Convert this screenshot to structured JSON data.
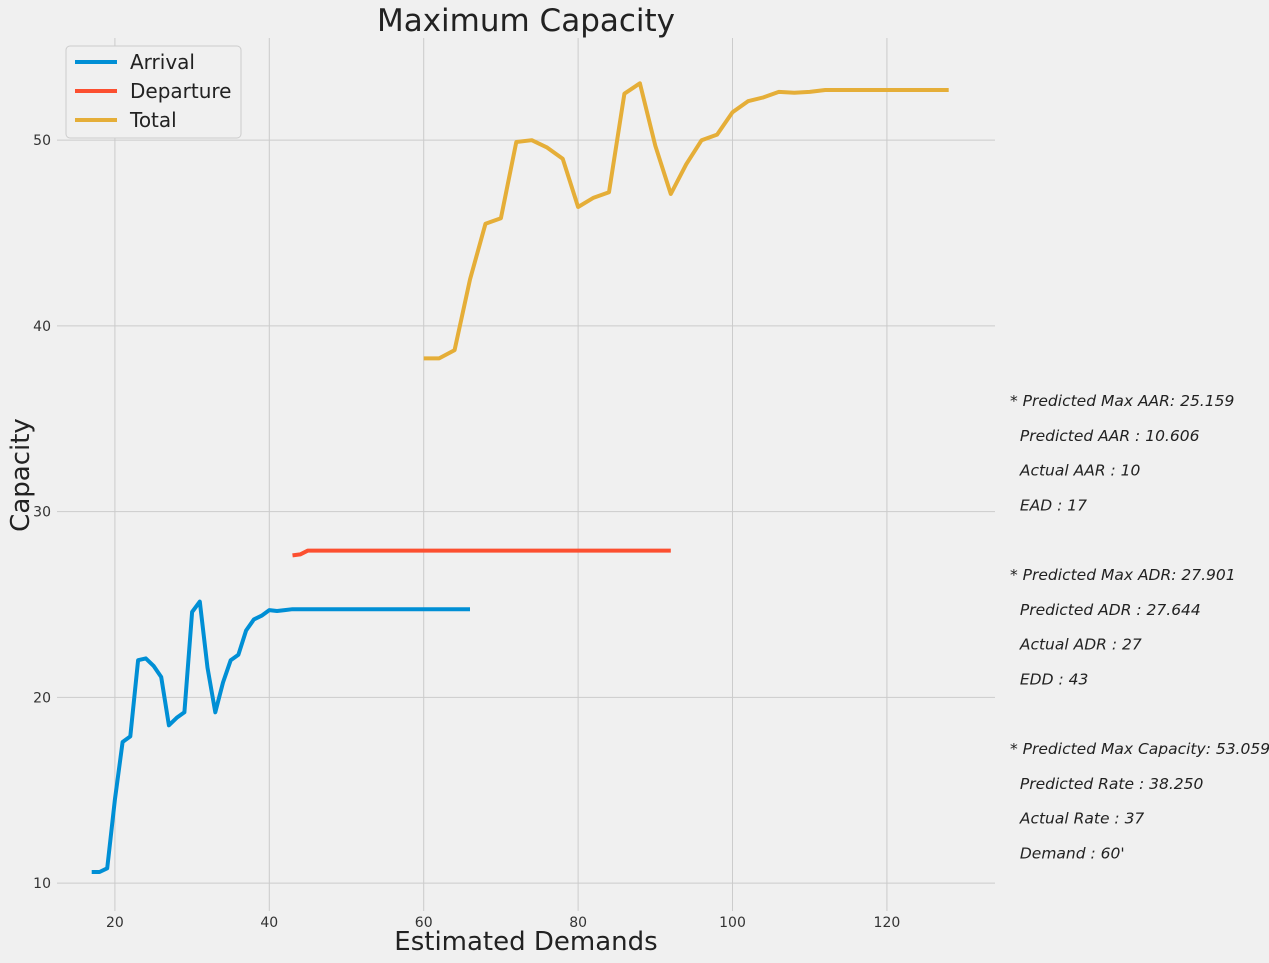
{
  "chart_data": {
    "type": "line",
    "title": "Maximum Capacity",
    "xlabel": "Estimated Demands",
    "ylabel": "Capacity",
    "xlim": [
      12.5,
      134
    ],
    "ylim": [
      8.5,
      55.5
    ],
    "x_ticks": [
      20,
      40,
      60,
      80,
      100,
      120
    ],
    "y_ticks": [
      10,
      20,
      30,
      40,
      50
    ],
    "grid": true,
    "legend_position": "top-left",
    "series": [
      {
        "name": "Arrival",
        "color": "#008fd5",
        "x": [
          17,
          18,
          19,
          20,
          21,
          22,
          23,
          24,
          25,
          26,
          27,
          28,
          29,
          30,
          31,
          32,
          33,
          34,
          35,
          36,
          37,
          38,
          39,
          40,
          41,
          42,
          43,
          44,
          45,
          50,
          55,
          60,
          65,
          66
        ],
        "y": [
          10.6,
          10.6,
          10.8,
          14.5,
          17.6,
          17.9,
          22.0,
          22.1,
          21.7,
          21.1,
          18.5,
          18.9,
          19.2,
          24.6,
          25.159,
          21.6,
          19.2,
          20.8,
          22.0,
          22.3,
          23.6,
          24.2,
          24.4,
          24.7,
          24.65,
          24.7,
          24.75,
          24.75,
          24.75,
          24.75,
          24.75,
          24.75,
          24.75,
          24.75
        ]
      },
      {
        "name": "Departure",
        "color": "#fc4f30",
        "x": [
          43,
          44,
          45,
          50,
          60,
          70,
          80,
          90,
          92
        ],
        "y": [
          27.644,
          27.7,
          27.901,
          27.901,
          27.901,
          27.901,
          27.901,
          27.901,
          27.901
        ]
      },
      {
        "name": "Total",
        "color": "#e5ae38",
        "x": [
          60,
          62,
          64,
          66,
          68,
          70,
          72,
          74,
          76,
          78,
          80,
          82,
          84,
          86,
          88,
          90,
          92,
          94,
          96,
          98,
          100,
          102,
          104,
          106,
          108,
          110,
          112,
          114,
          116,
          118,
          120,
          122,
          124,
          126,
          128
        ],
        "y": [
          38.25,
          38.25,
          38.7,
          42.5,
          45.5,
          45.8,
          49.9,
          50.0,
          49.6,
          49.0,
          46.4,
          46.9,
          47.2,
          52.5,
          53.059,
          49.7,
          47.1,
          48.7,
          50.0,
          50.3,
          51.5,
          52.1,
          52.3,
          52.6,
          52.55,
          52.6,
          52.7,
          52.7,
          52.7,
          52.7,
          52.7,
          52.7,
          52.7,
          52.7,
          52.7
        ]
      }
    ]
  },
  "annotations": [
    "* Predicted Max AAR: 25.159",
    "  Predicted AAR : 10.606",
    "  Actual AAR : 10",
    "  EAD : 17",
    "",
    "* Predicted Max ADR: 27.901",
    "  Predicted ADR : 27.644",
    "  Actual ADR : 27",
    "  EDD : 43",
    "",
    "* Predicted Max Capacity: 53.059",
    "  Predicted Rate : 38.250",
    "  Actual Rate : 37",
    "  Demand : 60'"
  ]
}
